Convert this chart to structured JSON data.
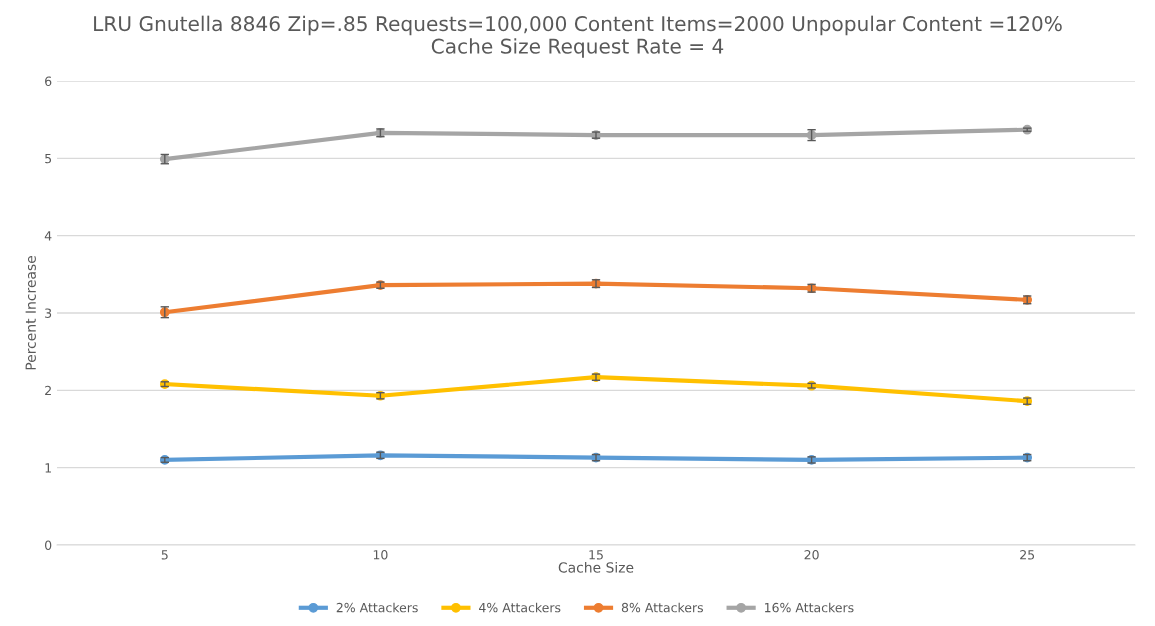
{
  "chart_data": {
    "type": "line",
    "title": "LRU Gnutella 8846 Zip=.85 Requests=100,000 Content Items=2000 Unpopular Content =120%\nCache Size Request Rate = 4",
    "xlabel": "Cache Size",
    "ylabel": "Percent Increase",
    "categories": [
      "5",
      "10",
      "15",
      "20",
      "25"
    ],
    "series": [
      {
        "name": "2% Attackers",
        "color": "#5b9bd5",
        "values": [
          1.1,
          1.16,
          1.13,
          1.1,
          1.13
        ],
        "errors": [
          0.03,
          0.04,
          0.04,
          0.04,
          0.04
        ]
      },
      {
        "name": "4% Attackers",
        "color": "#ffc000",
        "values": [
          2.08,
          1.93,
          2.17,
          2.06,
          1.86
        ],
        "errors": [
          0.03,
          0.04,
          0.04,
          0.03,
          0.04
        ]
      },
      {
        "name": "8% Attackers",
        "color": "#ed7d31",
        "values": [
          3.01,
          3.36,
          3.38,
          3.32,
          3.17
        ],
        "errors": [
          0.07,
          0.04,
          0.05,
          0.05,
          0.05
        ]
      },
      {
        "name": "16% Attackers",
        "color": "#a5a5a5",
        "values": [
          4.99,
          5.33,
          5.3,
          5.3,
          5.37
        ],
        "errors": [
          0.06,
          0.05,
          0.04,
          0.07,
          0.02
        ]
      }
    ],
    "ylim": [
      0,
      6
    ],
    "yticks": [
      0,
      1,
      2,
      3,
      4,
      5,
      6
    ],
    "grid": "y",
    "legend": "bottom",
    "marker": "circle",
    "line_style": "solid"
  }
}
